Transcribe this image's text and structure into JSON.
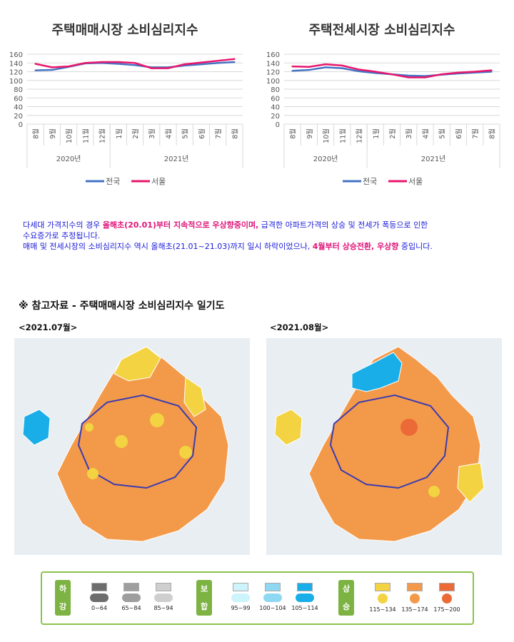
{
  "charts": [
    {
      "id": "left",
      "title": "주택매매시장 소비심리지수",
      "categories": [
        "8월",
        "9월",
        "10월",
        "11월",
        "12월",
        "1월",
        "2월",
        "3월",
        "4월",
        "5월",
        "6월",
        "7월",
        "8월"
      ],
      "year_labels": [
        "2020년",
        "2021년"
      ],
      "ylim": [
        0,
        160
      ],
      "yticks": [
        "0",
        "20",
        "40",
        "60",
        "80",
        "100",
        "120",
        "140",
        "160"
      ],
      "legend": [
        "전국",
        "서울"
      ],
      "series": [
        {
          "name": "전국",
          "color": "#4472c4",
          "values": [
            123,
            124,
            131,
            139,
            140,
            138,
            135,
            130,
            130,
            134,
            137,
            140,
            142
          ]
        },
        {
          "name": "서울",
          "color": "#e8166b",
          "values": [
            138,
            130,
            132,
            140,
            142,
            142,
            140,
            128,
            128,
            137,
            141,
            145,
            149
          ]
        }
      ]
    },
    {
      "id": "right",
      "title": "주택전세시장 소비심리지수",
      "categories": [
        "8월",
        "9월",
        "10월",
        "11월",
        "12월",
        "1월",
        "2월",
        "3월",
        "4월",
        "5월",
        "6월",
        "7월",
        "8월"
      ],
      "year_labels": [
        "2020년",
        "2021년"
      ],
      "ylim": [
        0,
        160
      ],
      "yticks": [
        "0",
        "20",
        "40",
        "60",
        "80",
        "100",
        "120",
        "140",
        "160"
      ],
      "legend": [
        "전국",
        "서울"
      ],
      "series": [
        {
          "name": "전국",
          "color": "#4472c4",
          "values": [
            122,
            124,
            130,
            128,
            121,
            117,
            114,
            111,
            110,
            113,
            116,
            118,
            120
          ]
        },
        {
          "name": "서울",
          "color": "#e8166b",
          "values": [
            132,
            131,
            137,
            134,
            125,
            120,
            114,
            107,
            107,
            114,
            118,
            120,
            123
          ]
        }
      ]
    }
  ],
  "chart_data": [
    {
      "type": "line",
      "title": "주택매매시장 소비심리지수",
      "x": [
        "2020년 8월",
        "9월",
        "10월",
        "11월",
        "12월",
        "2021년 1월",
        "2월",
        "3월",
        "4월",
        "5월",
        "6월",
        "7월",
        "8월"
      ],
      "ylim": [
        0,
        160
      ],
      "series": [
        {
          "name": "전국",
          "values": [
            123,
            124,
            131,
            139,
            140,
            138,
            135,
            130,
            130,
            134,
            137,
            140,
            142
          ]
        },
        {
          "name": "서울",
          "values": [
            138,
            130,
            132,
            140,
            142,
            142,
            140,
            128,
            128,
            137,
            141,
            145,
            149
          ]
        }
      ]
    },
    {
      "type": "line",
      "title": "주택전세시장 소비심리지수",
      "x": [
        "2020년 8월",
        "9월",
        "10월",
        "11월",
        "12월",
        "2021년 1월",
        "2월",
        "3월",
        "4월",
        "5월",
        "6월",
        "7월",
        "8월"
      ],
      "ylim": [
        0,
        160
      ],
      "series": [
        {
          "name": "전국",
          "values": [
            122,
            124,
            130,
            128,
            121,
            117,
            114,
            111,
            110,
            113,
            116,
            118,
            120
          ]
        },
        {
          "name": "서울",
          "values": [
            132,
            131,
            137,
            134,
            125,
            120,
            114,
            107,
            107,
            114,
            118,
            120,
            123
          ]
        }
      ]
    }
  ],
  "desc": {
    "l1a": "다세대 가격지수의 경우 ",
    "l1b": "올해초(20.01)부터 지속적으로 우상향중이며,",
    "l1c": " 급격한 아파트가격의 상승 및 전세가 폭등으로 인한",
    "l2": "수요증가로 추정됩니다.",
    "l3a": "매매 및 전세시장의 소비심리지수 역시 올해초(21.01~21.03)까지 일시 하락이었으나, ",
    "l3b": "4월부터 상승전환, 우상향",
    "l3c": " 중입니다."
  },
  "reference": {
    "title": "※ 참고자료 - 주택매매시장 소비심리지수 일기도",
    "map1_label": "<2021.07월>",
    "map2_label": "<2021.08월>"
  },
  "legend": {
    "groups": [
      {
        "label1": "하",
        "label2": "강",
        "color": "#7cb342"
      },
      {
        "label1": "보",
        "label2": "합",
        "color": "#7cb342"
      },
      {
        "label1": "상",
        "label2": "승",
        "color": "#7cb342"
      }
    ],
    "items": [
      {
        "range": "0~64",
        "color": "#6d6d6d",
        "icon": "heavy-rain-icon"
      },
      {
        "range": "65~84",
        "color": "#9e9e9e",
        "icon": "rain-icon"
      },
      {
        "range": "85~94",
        "color": "#cfcfcf",
        "icon": "cloud-icon"
      },
      {
        "range": "95~99",
        "color": "#cdf3fb",
        "icon": "light-cloud-icon"
      },
      {
        "range": "100~104",
        "color": "#8fd8f2",
        "icon": "partly-sunny-icon"
      },
      {
        "range": "105~114",
        "color": "#19aee8",
        "icon": "sun-cloud-icon"
      },
      {
        "range": "115~134",
        "color": "#f3d341",
        "icon": "sun-icon"
      },
      {
        "range": "135~174",
        "color": "#f39a4a",
        "icon": "bright-sun-icon"
      },
      {
        "range": "175~200",
        "color": "#ec6a37",
        "icon": "hot-sun-icon"
      }
    ]
  },
  "map_colors": {
    "orange": "#f39a4a",
    "yellow": "#f3d341",
    "blue": "#19aee8",
    "red": "#ec6a37",
    "sea": "#e9eef2",
    "border": "#3b3bb0"
  }
}
